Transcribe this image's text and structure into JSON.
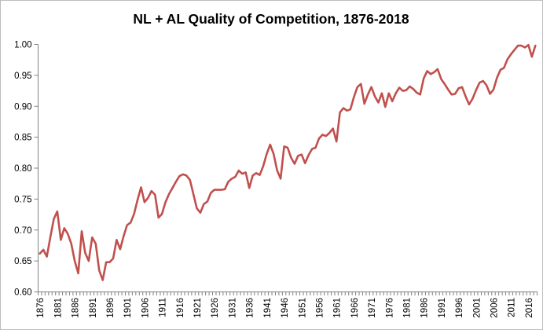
{
  "chart_data": {
    "type": "line",
    "title": "NL + AL Quality of Competition, 1876-2018",
    "xlabel": "",
    "ylabel": "",
    "ylim": [
      0.6,
      1.0
    ],
    "y_ticks": [
      "1.00",
      "0.95",
      "0.90",
      "0.85",
      "0.80",
      "0.75",
      "0.70",
      "0.65",
      "0.60"
    ],
    "x_tick_labels": [
      "1876",
      "1881",
      "1886",
      "1891",
      "1896",
      "1901",
      "1906",
      "1911",
      "1916",
      "1921",
      "1926",
      "1931",
      "1936",
      "1941",
      "1946",
      "1951",
      "1956",
      "1961",
      "1966",
      "1971",
      "1976",
      "1981",
      "1986",
      "1991",
      "1996",
      "2001",
      "2006",
      "2011",
      "2016"
    ],
    "x_tick_interval": 5,
    "grid": "off",
    "legend": "none",
    "line_color": "#C0504D",
    "axis_color": "#808080",
    "text_color": "#000000",
    "series": [
      {
        "name": "NL + AL Quality of Competition",
        "years": [
          1876,
          1877,
          1878,
          1879,
          1880,
          1881,
          1882,
          1883,
          1884,
          1885,
          1886,
          1887,
          1888,
          1889,
          1890,
          1891,
          1892,
          1893,
          1894,
          1895,
          1896,
          1897,
          1898,
          1899,
          1900,
          1901,
          1902,
          1903,
          1904,
          1905,
          1906,
          1907,
          1908,
          1909,
          1910,
          1911,
          1912,
          1913,
          1914,
          1915,
          1916,
          1917,
          1918,
          1919,
          1920,
          1921,
          1922,
          1923,
          1924,
          1925,
          1926,
          1927,
          1928,
          1929,
          1930,
          1931,
          1932,
          1933,
          1934,
          1935,
          1936,
          1937,
          1938,
          1939,
          1940,
          1941,
          1942,
          1943,
          1944,
          1945,
          1946,
          1947,
          1948,
          1949,
          1950,
          1951,
          1952,
          1953,
          1954,
          1955,
          1956,
          1957,
          1958,
          1959,
          1960,
          1961,
          1962,
          1963,
          1964,
          1965,
          1966,
          1967,
          1968,
          1969,
          1970,
          1971,
          1972,
          1973,
          1974,
          1975,
          1976,
          1977,
          1978,
          1979,
          1980,
          1981,
          1982,
          1983,
          1984,
          1985,
          1986,
          1987,
          1988,
          1989,
          1990,
          1991,
          1992,
          1993,
          1994,
          1995,
          1996,
          1997,
          1998,
          1999,
          2000,
          2001,
          2002,
          2003,
          2004,
          2005,
          2006,
          2007,
          2008,
          2009,
          2010,
          2011,
          2012,
          2013,
          2014,
          2015,
          2016,
          2017,
          2018
        ],
        "values": [
          0.662,
          0.668,
          0.657,
          0.688,
          0.718,
          0.73,
          0.684,
          0.703,
          0.694,
          0.678,
          0.65,
          0.63,
          0.698,
          0.663,
          0.65,
          0.688,
          0.678,
          0.635,
          0.619,
          0.648,
          0.648,
          0.654,
          0.684,
          0.669,
          0.69,
          0.708,
          0.712,
          0.726,
          0.749,
          0.769,
          0.745,
          0.752,
          0.763,
          0.757,
          0.72,
          0.726,
          0.745,
          0.758,
          0.768,
          0.778,
          0.787,
          0.79,
          0.788,
          0.781,
          0.758,
          0.735,
          0.728,
          0.742,
          0.746,
          0.76,
          0.765,
          0.765,
          0.765,
          0.766,
          0.778,
          0.783,
          0.786,
          0.796,
          0.791,
          0.793,
          0.768,
          0.788,
          0.792,
          0.789,
          0.803,
          0.823,
          0.838,
          0.823,
          0.796,
          0.783,
          0.835,
          0.833,
          0.817,
          0.807,
          0.82,
          0.822,
          0.808,
          0.821,
          0.831,
          0.833,
          0.848,
          0.854,
          0.852,
          0.857,
          0.864,
          0.843,
          0.89,
          0.897,
          0.893,
          0.895,
          0.915,
          0.931,
          0.936,
          0.904,
          0.919,
          0.931,
          0.916,
          0.906,
          0.921,
          0.899,
          0.921,
          0.908,
          0.921,
          0.93,
          0.925,
          0.926,
          0.932,
          0.928,
          0.922,
          0.919,
          0.945,
          0.957,
          0.952,
          0.955,
          0.96,
          0.944,
          0.936,
          0.927,
          0.919,
          0.92,
          0.929,
          0.931,
          0.916,
          0.903,
          0.912,
          0.926,
          0.938,
          0.941,
          0.934,
          0.92,
          0.927,
          0.946,
          0.959,
          0.962,
          0.976,
          0.984,
          0.991,
          0.998,
          0.998,
          0.995,
          0.999,
          0.98,
          0.998
        ]
      }
    ]
  }
}
